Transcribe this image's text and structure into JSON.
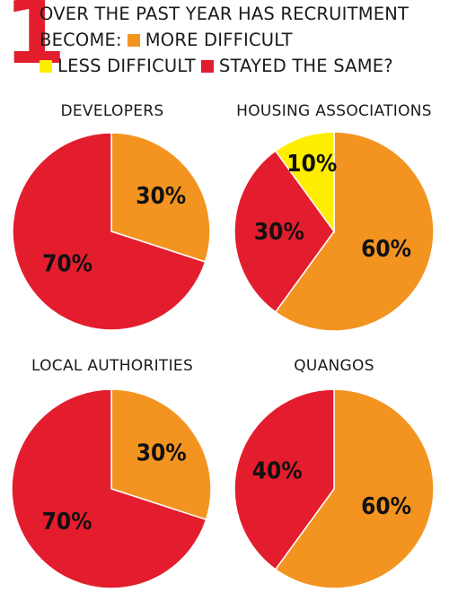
{
  "question": {
    "number": "1",
    "line1": "OVER THE PAST YEAR HAS RECRUITMENT",
    "line2_prefix": "BECOME:",
    "legend": [
      {
        "label": "MORE DIFFICULT",
        "color": "#f39421"
      },
      {
        "label": "LESS DIFFICULT",
        "color": "#ffed00"
      },
      {
        "label": "STAYED THE SAME?",
        "color": "#e31d2d"
      }
    ]
  },
  "chart_data": [
    {
      "type": "pie",
      "title": "DEVELOPERS",
      "slices": [
        {
          "label": "MORE DIFFICULT",
          "value": 30,
          "text": "30%",
          "color": "#f39421"
        },
        {
          "label": "STAYED THE SAME?",
          "value": 70,
          "text": "70%",
          "color": "#e31d2d"
        }
      ]
    },
    {
      "type": "pie",
      "title": "HOUSING ASSOCIATIONS",
      "slices": [
        {
          "label": "MORE DIFFICULT",
          "value": 60,
          "text": "60%",
          "color": "#f39421"
        },
        {
          "label": "STAYED THE SAME?",
          "value": 30,
          "text": "30%",
          "color": "#e31d2d"
        },
        {
          "label": "LESS DIFFICULT",
          "value": 10,
          "text": "10%",
          "color": "#ffed00"
        }
      ]
    },
    {
      "type": "pie",
      "title": "LOCAL AUTHORITIES",
      "slices": [
        {
          "label": "MORE DIFFICULT",
          "value": 30,
          "text": "30%",
          "color": "#f39421"
        },
        {
          "label": "STAYED THE SAME?",
          "value": 70,
          "text": "70%",
          "color": "#e31d2d"
        }
      ]
    },
    {
      "type": "pie",
      "title": "QUANGOS",
      "slices": [
        {
          "label": "MORE DIFFICULT",
          "value": 60,
          "text": "60%",
          "color": "#f39421"
        },
        {
          "label": "STAYED THE SAME?",
          "value": 40,
          "text": "40%",
          "color": "#e31d2d"
        }
      ]
    }
  ]
}
